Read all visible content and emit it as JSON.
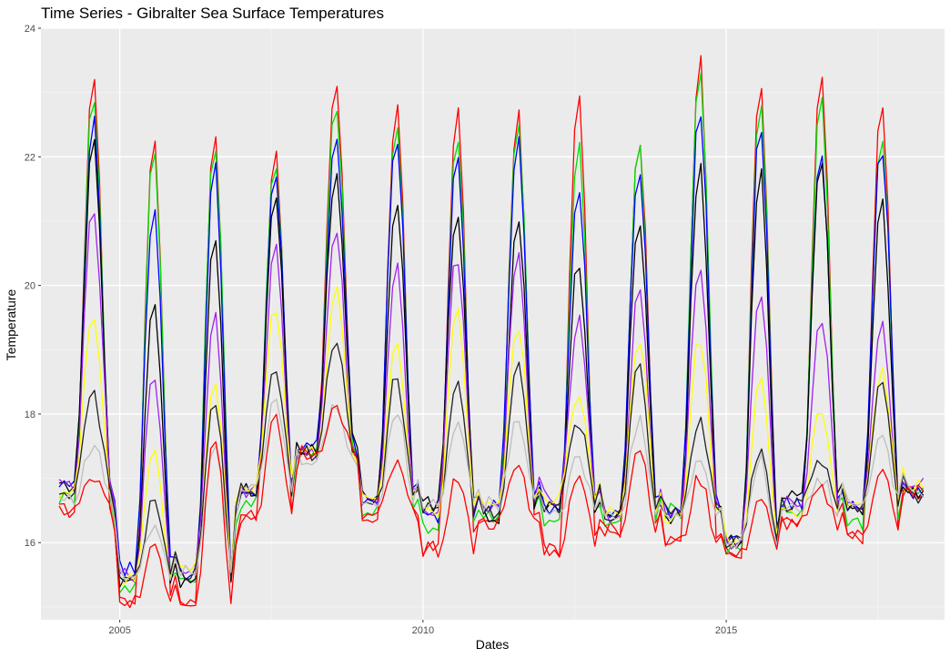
{
  "chart_data": {
    "type": "line",
    "title": "Time Series - Gibralter Sea Surface Temperatures",
    "xlabel": "Dates",
    "ylabel": "Temperature",
    "xlim": [
      2003.7,
      2018.6
    ],
    "ylim": [
      14.8,
      24.0
    ],
    "x_ticks": [
      2005,
      2010,
      2015
    ],
    "x_tick_labels": [
      "2005",
      "2010",
      "2015"
    ],
    "y_ticks": [
      16,
      18,
      20,
      22,
      24
    ],
    "y_tick_labels": [
      "16",
      "18",
      "20",
      "22",
      "24"
    ],
    "grid": true,
    "panel_background": "#ebebeb",
    "x_start": 2004.0,
    "x_step_months": 1,
    "series": [
      {
        "color": "#ff0000",
        "profile": {
          "a": [
            23.3,
            22.4,
            22.5,
            22.1,
            23.1,
            22.8,
            22.8,
            22.7,
            23.1,
            22.3,
            23.6,
            23.2,
            23.3,
            22.9,
            23.0
          ],
          "b": [
            16.5,
            15.1,
            15.1,
            16.4,
            17.4,
            16.4,
            15.9,
            16.3,
            15.9,
            16.2,
            16.0,
            15.8,
            16.3,
            16.1,
            16.8
          ]
        }
      },
      {
        "color": "#00dd00",
        "profile": {
          "a": [
            23.0,
            22.2,
            22.3,
            22.0,
            22.9,
            22.5,
            22.3,
            22.6,
            22.2,
            22.2,
            23.4,
            22.8,
            23.0,
            22.4,
            23.0
          ],
          "b": [
            16.7,
            15.3,
            15.4,
            16.6,
            17.4,
            16.5,
            16.2,
            16.4,
            16.3,
            16.3,
            16.5,
            15.9,
            16.5,
            16.3,
            16.8
          ]
        }
      },
      {
        "color": "#0000ff",
        "profile": {
          "a": [
            22.6,
            21.3,
            21.9,
            21.8,
            22.4,
            22.3,
            22.1,
            22.3,
            21.5,
            21.9,
            22.8,
            22.5,
            22.1,
            22.2,
            22.2
          ],
          "b": [
            16.9,
            15.6,
            15.5,
            16.7,
            17.5,
            16.7,
            16.4,
            16.6,
            16.5,
            16.5,
            16.5,
            16.0,
            16.6,
            16.6,
            16.8
          ]
        }
      },
      {
        "color": "#000000",
        "profile": {
          "a": [
            22.3,
            19.8,
            20.7,
            21.4,
            21.8,
            21.4,
            21.2,
            21.1,
            20.4,
            21.0,
            21.9,
            21.8,
            22.0,
            21.3,
            22.0
          ],
          "b": [
            16.9,
            15.4,
            15.4,
            16.8,
            17.5,
            16.7,
            16.6,
            16.4,
            16.5,
            16.4,
            16.4,
            16.0,
            16.7,
            16.5,
            16.8
          ]
        }
      },
      {
        "color": "#a020f0",
        "profile": {
          "a": [
            21.2,
            18.6,
            19.6,
            20.6,
            20.8,
            20.3,
            20.5,
            20.5,
            19.5,
            19.9,
            20.3,
            19.9,
            19.5,
            19.4,
            21.0
          ],
          "b": [
            16.9,
            15.5,
            15.6,
            16.8,
            17.4,
            16.7,
            16.5,
            16.5,
            16.7,
            16.4,
            16.5,
            16.0,
            16.6,
            16.6,
            16.9
          ]
        }
      },
      {
        "color": "#ffff00",
        "profile": {
          "a": [
            19.6,
            17.5,
            18.5,
            19.7,
            19.9,
            19.1,
            19.6,
            19.4,
            18.3,
            19.2,
            19.2,
            18.5,
            18.1,
            18.7,
            19.9
          ],
          "b": [
            16.8,
            15.4,
            15.6,
            16.9,
            17.4,
            16.7,
            16.5,
            16.6,
            16.7,
            16.5,
            16.4,
            16.0,
            16.5,
            16.6,
            16.9
          ]
        }
      },
      {
        "color": "#222222",
        "profile": {
          "a": [
            18.3,
            16.7,
            18.2,
            18.7,
            19.2,
            18.6,
            18.5,
            18.8,
            17.9,
            18.8,
            17.9,
            17.5,
            17.3,
            18.5,
            19.1
          ],
          "b": [
            16.8,
            15.4,
            15.5,
            16.8,
            17.4,
            16.6,
            16.5,
            16.5,
            16.6,
            16.4,
            16.5,
            16.0,
            16.6,
            16.6,
            16.7
          ]
        }
      },
      {
        "color": "#bebebe",
        "profile": {
          "a": [
            17.5,
            16.3,
            17.6,
            18.2,
            18.1,
            18.1,
            17.9,
            18.0,
            17.3,
            17.9,
            17.3,
            17.3,
            17.0,
            17.7,
            18.3
          ],
          "b": [
            16.7,
            15.5,
            15.6,
            16.8,
            17.3,
            16.6,
            16.6,
            16.6,
            16.5,
            16.4,
            16.4,
            16.0,
            16.5,
            16.6,
            16.8
          ]
        }
      },
      {
        "color": "#ff0000",
        "profile": {
          "a": [
            17.0,
            16.0,
            17.7,
            17.9,
            18.1,
            17.2,
            17.0,
            17.2,
            17.1,
            17.5,
            17.0,
            16.7,
            16.8,
            17.2,
            17.9
          ],
          "b": [
            16.5,
            15.1,
            15.1,
            16.4,
            17.4,
            16.4,
            15.9,
            16.3,
            15.9,
            16.2,
            16.0,
            15.8,
            16.3,
            16.1,
            16.8
          ]
        }
      }
    ]
  }
}
